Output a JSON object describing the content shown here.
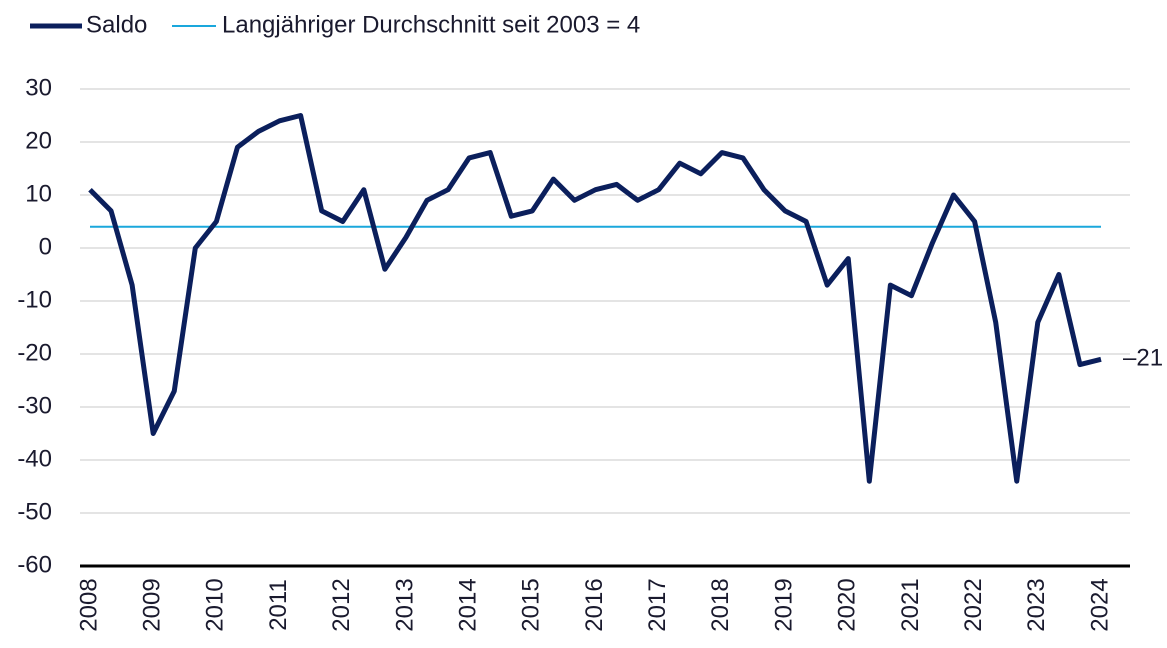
{
  "chart_data": {
    "type": "line",
    "categories": [
      "2008",
      null,
      null,
      "2009",
      null,
      null,
      "2010",
      null,
      null,
      "2011",
      null,
      null,
      "2012",
      null,
      null,
      "2013",
      null,
      null,
      "2014",
      null,
      null,
      "2015",
      null,
      null,
      "2016",
      null,
      null,
      "2017",
      null,
      null,
      "2018",
      null,
      null,
      "2019",
      null,
      null,
      "2020",
      null,
      null,
      "2021",
      null,
      null,
      "2022",
      null,
      null,
      "2023",
      null,
      null,
      "2024"
    ],
    "series": [
      {
        "name": "Saldo",
        "color": "#0b1f5c",
        "values": [
          11,
          7,
          -7,
          -35,
          -27,
          0,
          5,
          19,
          22,
          24,
          25,
          7,
          5,
          11,
          -4,
          2,
          9,
          11,
          17,
          18,
          6,
          7,
          13,
          9,
          11,
          12,
          9,
          11,
          16,
          14,
          18,
          17,
          11,
          7,
          5,
          -7,
          -2,
          -44,
          -7,
          -9,
          1,
          10,
          5,
          -14,
          -44,
          -14,
          -5,
          -22,
          -21
        ],
        "value_labels": [
          null,
          null,
          null,
          null,
          null,
          null,
          null,
          null,
          null,
          null,
          null,
          null,
          null,
          null,
          null,
          null,
          null,
          null,
          null,
          null,
          null,
          null,
          null,
          null,
          null,
          null,
          null,
          null,
          null,
          null,
          null,
          null,
          null,
          null,
          null,
          null,
          null,
          null,
          null,
          null,
          null,
          null,
          null,
          null,
          null,
          null,
          null,
          null,
          "–21"
        ]
      }
    ],
    "reference_line": {
      "name": "Langjähriger Durchschnitt seit 2003 = 4",
      "value": 4,
      "color": "#1aa7dc"
    },
    "ylim": [
      -60,
      30
    ],
    "yticks": [
      -60,
      -50,
      -40,
      -30,
      -20,
      -10,
      0,
      10,
      20,
      30
    ],
    "grid": true
  }
}
